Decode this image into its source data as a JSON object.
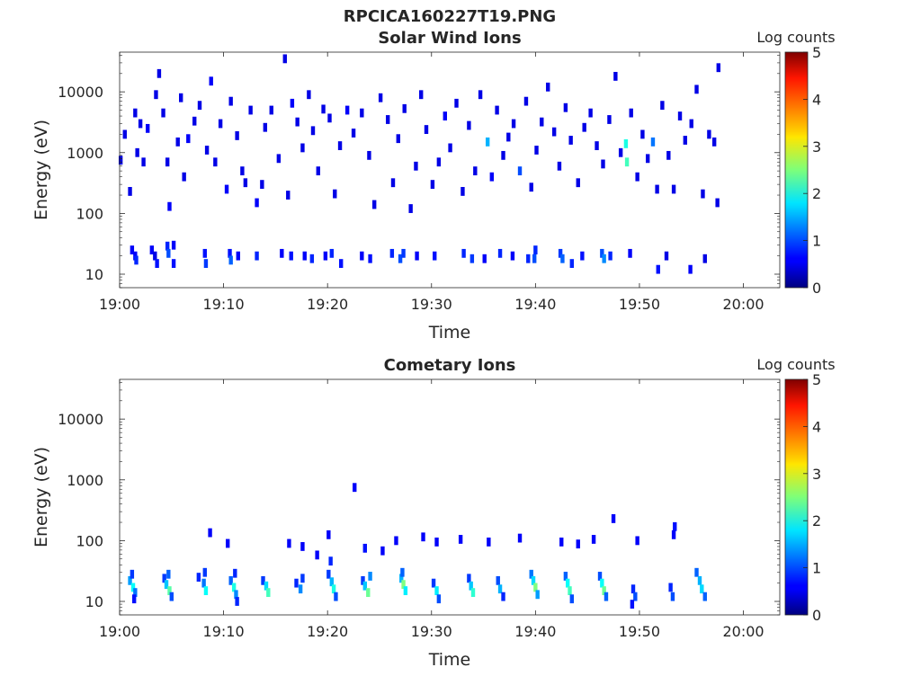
{
  "figure_title": "RPCICA160227T19.PNG",
  "colorbar": {
    "label": "Log counts",
    "ticks": [
      "0",
      "1",
      "2",
      "3",
      "4",
      "5"
    ],
    "colormap": "jet",
    "range": [
      0,
      5
    ]
  },
  "chart_data": [
    {
      "type": "heatmap",
      "title": "Solar Wind Ions",
      "xlabel": "Time",
      "ylabel": "Energy (eV)",
      "xticks": [
        "19:00",
        "19:10",
        "19:20",
        "19:30",
        "19:40",
        "19:50",
        "20:00"
      ],
      "xlim_minutes": [
        0,
        63.5
      ],
      "yticks": [
        "10",
        "100",
        "1000",
        "10000"
      ],
      "ylim": [
        6,
        45000
      ],
      "yscale": "log",
      "cells": [
        [
          0.1,
          750,
          0.5
        ],
        [
          0.5,
          2000,
          0.5
        ],
        [
          1.0,
          230,
          0.5
        ],
        [
          1.2,
          25,
          0.6
        ],
        [
          1.5,
          4500,
          0.5
        ],
        [
          1.7,
          1000,
          0.5
        ],
        [
          2.0,
          3000,
          0.5
        ],
        [
          2.3,
          700,
          0.5
        ],
        [
          2.7,
          2500,
          0.6
        ],
        [
          3.1,
          25,
          0.6
        ],
        [
          3.5,
          9000,
          0.5
        ],
        [
          3.8,
          20000,
          0.5
        ],
        [
          4.2,
          4500,
          0.5
        ],
        [
          4.6,
          700,
          0.5
        ],
        [
          4.8,
          130,
          0.6
        ],
        [
          5.2,
          30,
          0.6
        ],
        [
          5.6,
          1500,
          0.5
        ],
        [
          5.9,
          8000,
          0.5
        ],
        [
          6.2,
          400,
          0.5
        ],
        [
          6.6,
          1700,
          0.6
        ],
        [
          7.2,
          3300,
          0.5
        ],
        [
          7.7,
          6000,
          0.5
        ],
        [
          8.4,
          1100,
          0.5
        ],
        [
          8.8,
          15000,
          0.6
        ],
        [
          9.2,
          700,
          0.5
        ],
        [
          9.7,
          3000,
          0.5
        ],
        [
          10.3,
          250,
          0.6
        ],
        [
          10.7,
          7000,
          0.5
        ],
        [
          11.3,
          1900,
          0.5
        ],
        [
          11.8,
          500,
          0.5
        ],
        [
          12.1,
          320,
          0.5
        ],
        [
          12.6,
          5000,
          0.5
        ],
        [
          13.2,
          150,
          0.6
        ],
        [
          13.7,
          300,
          0.5
        ],
        [
          14.0,
          2600,
          0.5
        ],
        [
          14.6,
          5000,
          0.5
        ],
        [
          15.3,
          800,
          0.5
        ],
        [
          15.9,
          35000,
          0.5
        ],
        [
          16.2,
          200,
          0.5
        ],
        [
          16.6,
          6500,
          0.6
        ],
        [
          17.1,
          3200,
          0.5
        ],
        [
          17.6,
          1200,
          0.5
        ],
        [
          18.2,
          9000,
          0.5
        ],
        [
          18.6,
          2300,
          0.5
        ],
        [
          19.1,
          500,
          0.5
        ],
        [
          19.6,
          5200,
          0.5
        ],
        [
          20.2,
          3700,
          0.5
        ],
        [
          20.7,
          210,
          0.5
        ],
        [
          21.2,
          1300,
          0.5
        ],
        [
          21.9,
          5000,
          0.6
        ],
        [
          22.5,
          2100,
          0.5
        ],
        [
          23.3,
          4500,
          0.5
        ],
        [
          24.0,
          900,
          0.5
        ],
        [
          24.5,
          140,
          0.5
        ],
        [
          25.1,
          8000,
          0.5
        ],
        [
          25.8,
          3500,
          0.5
        ],
        [
          26.3,
          320,
          0.5
        ],
        [
          26.8,
          1700,
          0.5
        ],
        [
          27.4,
          5300,
          0.5
        ],
        [
          28.0,
          120,
          0.5
        ],
        [
          28.5,
          600,
          0.5
        ],
        [
          29.0,
          9000,
          0.5
        ],
        [
          29.5,
          2400,
          0.5
        ],
        [
          30.1,
          300,
          0.5
        ],
        [
          30.7,
          700,
          0.5
        ],
        [
          31.3,
          4000,
          0.6
        ],
        [
          31.8,
          1200,
          0.5
        ],
        [
          32.4,
          6500,
          0.5
        ],
        [
          33.0,
          230,
          0.5
        ],
        [
          33.6,
          2800,
          0.5
        ],
        [
          34.2,
          500,
          0.5
        ],
        [
          34.7,
          9000,
          0.5
        ],
        [
          35.4,
          1500,
          1.5
        ],
        [
          35.8,
          400,
          0.6
        ],
        [
          36.3,
          5000,
          0.5
        ],
        [
          36.9,
          900,
          0.5
        ],
        [
          37.4,
          1800,
          0.5
        ],
        [
          37.9,
          3000,
          0.5
        ],
        [
          38.5,
          500,
          1.0
        ],
        [
          39.1,
          7000,
          0.5
        ],
        [
          39.6,
          270,
          0.5
        ],
        [
          40.1,
          1100,
          0.5
        ],
        [
          40.6,
          3200,
          0.5
        ],
        [
          41.2,
          12000,
          0.5
        ],
        [
          41.8,
          2200,
          0.5
        ],
        [
          42.3,
          600,
          0.5
        ],
        [
          42.9,
          5500,
          0.5
        ],
        [
          43.4,
          1600,
          0.5
        ],
        [
          44.1,
          320,
          0.5
        ],
        [
          44.7,
          2600,
          0.5
        ],
        [
          45.3,
          4500,
          0.5
        ],
        [
          45.9,
          1300,
          0.5
        ],
        [
          46.5,
          650,
          0.5
        ],
        [
          47.1,
          3500,
          0.5
        ],
        [
          47.7,
          18000,
          0.5
        ],
        [
          48.2,
          1000,
          0.5
        ],
        [
          48.7,
          1400,
          2.0
        ],
        [
          48.8,
          700,
          2.2
        ],
        [
          49.2,
          4500,
          0.5
        ],
        [
          49.8,
          400,
          0.5
        ],
        [
          50.3,
          2000,
          0.5
        ],
        [
          50.8,
          800,
          0.5
        ],
        [
          51.3,
          1500,
          1.2
        ],
        [
          51.7,
          250,
          0.5
        ],
        [
          52.2,
          6000,
          0.5
        ],
        [
          52.8,
          900,
          0.5
        ],
        [
          53.3,
          250,
          0.5
        ],
        [
          53.9,
          4000,
          0.5
        ],
        [
          54.4,
          1600,
          0.5
        ],
        [
          55.0,
          3000,
          0.5
        ],
        [
          55.5,
          11000,
          0.5
        ],
        [
          56.1,
          210,
          0.5
        ],
        [
          56.7,
          2000,
          0.5
        ],
        [
          57.2,
          1500,
          0.5
        ],
        [
          57.6,
          25000,
          0.5
        ],
        [
          57.5,
          150,
          0.5
        ],
        [
          1.5,
          20,
          0.6
        ],
        [
          1.6,
          17,
          0.8
        ],
        [
          3.4,
          20,
          0.5
        ],
        [
          3.6,
          15,
          0.7
        ],
        [
          4.6,
          29,
          0.8
        ],
        [
          4.7,
          22,
          1.0
        ],
        [
          5.2,
          15,
          0.7
        ],
        [
          8.2,
          22,
          0.7
        ],
        [
          8.3,
          15,
          0.9
        ],
        [
          10.6,
          22,
          0.7
        ],
        [
          10.7,
          17,
          1.1
        ],
        [
          11.4,
          20,
          0.6
        ],
        [
          13.2,
          20,
          0.8
        ],
        [
          15.6,
          22,
          0.6
        ],
        [
          16.5,
          20,
          0.7
        ],
        [
          17.8,
          20,
          0.6
        ],
        [
          18.5,
          18,
          0.8
        ],
        [
          19.8,
          20,
          0.6
        ],
        [
          20.4,
          22,
          0.8
        ],
        [
          21.3,
          15,
          0.7
        ],
        [
          23.3,
          20,
          0.6
        ],
        [
          24.1,
          18,
          0.7
        ],
        [
          26.2,
          22,
          0.8
        ],
        [
          27.0,
          18,
          1.0
        ],
        [
          27.3,
          22,
          0.9
        ],
        [
          28.6,
          20,
          0.6
        ],
        [
          30.3,
          20,
          0.7
        ],
        [
          33.1,
          22,
          0.8
        ],
        [
          33.9,
          18,
          0.9
        ],
        [
          35.1,
          18,
          0.6
        ],
        [
          36.6,
          22,
          0.8
        ],
        [
          37.8,
          20,
          0.6
        ],
        [
          39.3,
          18,
          0.8
        ],
        [
          39.9,
          18,
          1.0
        ],
        [
          40.0,
          25,
          0.8
        ],
        [
          42.4,
          22,
          0.9
        ],
        [
          42.6,
          18,
          1.1
        ],
        [
          43.5,
          15,
          0.8
        ],
        [
          44.5,
          20,
          0.7
        ],
        [
          46.4,
          22,
          1.0
        ],
        [
          46.6,
          18,
          1.3
        ],
        [
          47.2,
          20,
          0.8
        ],
        [
          49.1,
          22,
          0.6
        ],
        [
          51.8,
          12,
          0.7
        ],
        [
          52.6,
          20,
          0.5
        ],
        [
          54.9,
          12,
          0.6
        ],
        [
          56.3,
          18,
          0.5
        ]
      ]
    },
    {
      "type": "heatmap",
      "title": "Cometary Ions",
      "xlabel": "Time",
      "ylabel": "Energy (eV)",
      "xticks": [
        "19:00",
        "19:10",
        "19:20",
        "19:30",
        "19:40",
        "19:50",
        "20:00"
      ],
      "xlim_minutes": [
        0,
        63.5
      ],
      "yticks": [
        "10",
        "100",
        "1000",
        "10000"
      ],
      "ylim": [
        6,
        45000
      ],
      "yscale": "log",
      "cells": [
        [
          1.0,
          22,
          1.4
        ],
        [
          1.3,
          17,
          1.9
        ],
        [
          1.5,
          14,
          1.2
        ],
        [
          1.2,
          28,
          0.9
        ],
        [
          1.4,
          11,
          0.7
        ],
        [
          4.3,
          24,
          0.9
        ],
        [
          4.5,
          19,
          1.6
        ],
        [
          4.8,
          15,
          2.3
        ],
        [
          4.7,
          28,
          1.1
        ],
        [
          5.0,
          12,
          1.0
        ],
        [
          7.6,
          25,
          0.8
        ],
        [
          8.1,
          20,
          1.2
        ],
        [
          8.3,
          15,
          1.9
        ],
        [
          8.2,
          30,
          0.9
        ],
        [
          10.7,
          22,
          1.1
        ],
        [
          11.0,
          17,
          2.0
        ],
        [
          11.2,
          13,
          1.3
        ],
        [
          11.1,
          29,
          0.8
        ],
        [
          11.3,
          10,
          0.8
        ],
        [
          13.8,
          22,
          0.9
        ],
        [
          14.1,
          18,
          1.7
        ],
        [
          14.3,
          14,
          2.2
        ],
        [
          17.0,
          20,
          0.8
        ],
        [
          17.4,
          16,
          1.3
        ],
        [
          17.6,
          24,
          0.9
        ],
        [
          20.1,
          28,
          0.9
        ],
        [
          20.4,
          21,
          1.5
        ],
        [
          20.6,
          16,
          2.0
        ],
        [
          20.8,
          12,
          1.0
        ],
        [
          20.3,
          46,
          0.8
        ],
        [
          23.4,
          22,
          0.9
        ],
        [
          23.6,
          18,
          1.6
        ],
        [
          23.9,
          14,
          2.4
        ],
        [
          24.1,
          26,
          1.3
        ],
        [
          27.1,
          24,
          1.5
        ],
        [
          27.3,
          19,
          2.5
        ],
        [
          27.5,
          15,
          1.8
        ],
        [
          27.2,
          30,
          1.1
        ],
        [
          30.2,
          20,
          0.9
        ],
        [
          30.5,
          15,
          1.8
        ],
        [
          30.7,
          11,
          1.0
        ],
        [
          33.6,
          24,
          0.9
        ],
        [
          33.8,
          18,
          1.6
        ],
        [
          34.0,
          14,
          2.1
        ],
        [
          36.4,
          22,
          1.0
        ],
        [
          36.6,
          16,
          1.5
        ],
        [
          36.9,
          12,
          0.8
        ],
        [
          39.6,
          28,
          1.2
        ],
        [
          39.8,
          22,
          1.7
        ],
        [
          40.0,
          17,
          2.5
        ],
        [
          40.2,
          13,
          1.4
        ],
        [
          42.9,
          26,
          1.1
        ],
        [
          43.1,
          20,
          1.9
        ],
        [
          43.3,
          15,
          2.2
        ],
        [
          43.5,
          11,
          1.0
        ],
        [
          46.2,
          26,
          1.0
        ],
        [
          46.4,
          20,
          1.9
        ],
        [
          46.6,
          15,
          2.4
        ],
        [
          46.8,
          12,
          1.1
        ],
        [
          49.4,
          16,
          0.8
        ],
        [
          49.6,
          12,
          1.0
        ],
        [
          49.3,
          9,
          0.7
        ],
        [
          53.0,
          17,
          0.8
        ],
        [
          53.2,
          12,
          1.0
        ],
        [
          55.5,
          30,
          1.1
        ],
        [
          55.8,
          22,
          1.5
        ],
        [
          56.0,
          16,
          1.7
        ],
        [
          56.3,
          12,
          1.1
        ],
        [
          22.6,
          750,
          0.6
        ],
        [
          8.7,
          135,
          0.6
        ],
        [
          10.4,
          90,
          0.6
        ],
        [
          16.3,
          90,
          0.6
        ],
        [
          17.6,
          80,
          0.6
        ],
        [
          19.0,
          58,
          0.6
        ],
        [
          20.1,
          125,
          0.6
        ],
        [
          23.6,
          75,
          0.7
        ],
        [
          25.3,
          68,
          0.6
        ],
        [
          26.6,
          100,
          0.6
        ],
        [
          29.2,
          115,
          0.6
        ],
        [
          30.5,
          95,
          0.6
        ],
        [
          32.8,
          105,
          0.6
        ],
        [
          35.5,
          95,
          0.6
        ],
        [
          38.5,
          110,
          0.6
        ],
        [
          42.5,
          95,
          0.6
        ],
        [
          44.1,
          88,
          0.6
        ],
        [
          45.6,
          105,
          0.6
        ],
        [
          47.5,
          230,
          0.6
        ],
        [
          49.8,
          100,
          0.6
        ],
        [
          53.4,
          170,
          0.7
        ],
        [
          53.3,
          125,
          0.6
        ]
      ]
    }
  ]
}
